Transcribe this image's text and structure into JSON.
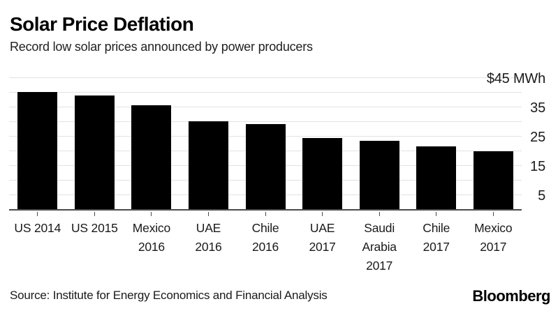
{
  "header": {
    "title": "Solar Price Deflation",
    "subtitle": "Record low solar prices announced by power producers"
  },
  "chart_data": {
    "type": "bar",
    "title": "Solar Price Deflation",
    "subtitle": "Record low solar prices announced by power producers",
    "categories": [
      "US 2014",
      "US 2015",
      "Mexico 2016",
      "UAE 2016",
      "Chile 2016",
      "UAE 2017",
      "Saudi Arabia 2017",
      "Chile 2017",
      "Mexico 2017"
    ],
    "category_label_lines": [
      [
        "US 2014"
      ],
      [
        "US 2015"
      ],
      [
        "Mexico",
        "2016"
      ],
      [
        "UAE",
        "2016"
      ],
      [
        "Chile",
        "2016"
      ],
      [
        "UAE",
        "2017"
      ],
      [
        "Saudi",
        "Arabia",
        "2017"
      ],
      [
        "Chile",
        "2017"
      ],
      [
        "Mexico",
        "2017"
      ]
    ],
    "values": [
      40,
      38.7,
      35.5,
      29.9,
      29.1,
      24.2,
      23.4,
      21.5,
      19.7
    ],
    "unit": "$/MWh",
    "xlabel": "",
    "ylabel": "",
    "ylim": [
      0,
      45
    ],
    "grid": true,
    "grid_interval": 5,
    "legend": "none",
    "y_tick_labels": [
      {
        "value": 45,
        "label": "$45 MWh"
      },
      {
        "value": 35,
        "label": "35"
      },
      {
        "value": 25,
        "label": "25"
      },
      {
        "value": 15,
        "label": "15"
      },
      {
        "value": 5,
        "label": "5"
      }
    ],
    "colors": {
      "bar": "#000000",
      "gridline": "#e2e2e2",
      "axis": "#4a4a4a",
      "background": "#ffffff"
    }
  },
  "footer": {
    "source": "Source: Institute for Energy Economics and Financial Analysis",
    "brand": "Bloomberg"
  }
}
